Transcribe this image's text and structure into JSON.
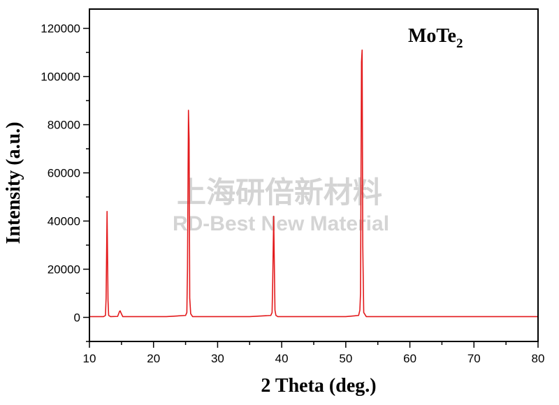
{
  "chart_data": {
    "type": "line",
    "title": "MoTe",
    "title_subscript": "2",
    "xlabel": "2 Theta (deg.)",
    "ylabel": "Intensity (a.u.)",
    "xlim": [
      10,
      80
    ],
    "ylim": [
      -10000,
      128000
    ],
    "x_ticks": [
      10,
      20,
      30,
      40,
      50,
      60,
      70,
      80
    ],
    "y_ticks": [
      0,
      20000,
      40000,
      60000,
      80000,
      100000,
      120000
    ],
    "grid": false,
    "line_color": "#e31a1c",
    "series": [
      {
        "x": [
          10,
          12.2,
          12.5,
          12.6,
          12.75,
          12.9,
          13.0,
          13.3,
          14.4,
          14.7,
          14.8,
          14.9,
          15.2,
          18,
          22,
          25.0,
          25.2,
          25.3,
          25.45,
          25.55,
          25.65,
          25.8,
          26.1,
          30,
          35,
          38.3,
          38.5,
          38.6,
          38.75,
          38.85,
          38.95,
          39.1,
          39.4,
          45,
          50,
          52.0,
          52.2,
          52.3,
          52.45,
          52.55,
          52.65,
          52.8,
          53.2,
          60,
          67,
          75,
          80
        ],
        "y": [
          300,
          300,
          800,
          8000,
          44000,
          7000,
          800,
          300,
          400,
          2500,
          2700,
          2000,
          300,
          300,
          300,
          800,
          2000,
          20000,
          86000,
          74000,
          8000,
          1500,
          300,
          300,
          300,
          800,
          2000,
          15000,
          42000,
          22000,
          3000,
          800,
          300,
          300,
          300,
          800,
          3000,
          10000,
          106000,
          111000,
          30000,
          2000,
          300,
          300,
          300,
          300,
          300
        ]
      }
    ]
  },
  "watermark": {
    "line1": "上海研倍新材料",
    "line2": "RD-Best New Material",
    "color": "#d4d4d4"
  }
}
